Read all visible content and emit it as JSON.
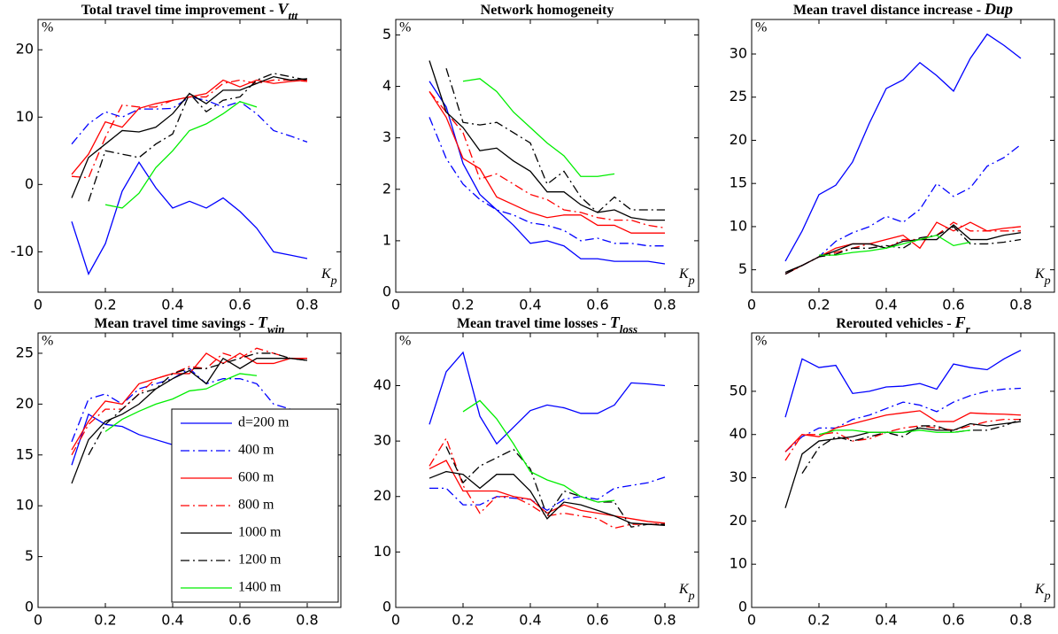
{
  "chart_data": [
    {
      "type": "line",
      "title": "Total travel time improvement -",
      "title_var": "V",
      "title_sub": "ttt",
      "y_label": "%",
      "x_label": "K",
      "x_label_sub": "p",
      "x": [
        0.1,
        0.15,
        0.2,
        0.25,
        0.3,
        0.35,
        0.4,
        0.45,
        0.5,
        0.55,
        0.6,
        0.65,
        0.7,
        0.75,
        0.8
      ],
      "xlim": [
        0,
        0.9
      ],
      "xticks": [
        0,
        0.2,
        0.4,
        0.6,
        0.8
      ],
      "ylim": [
        -16,
        24.5
      ],
      "yticks": [
        -10,
        0,
        10,
        20
      ],
      "series": [
        {
          "color": "#0000ff",
          "dash": "solid",
          "values": [
            -5.5,
            -13.3,
            -8.8,
            -1,
            3.3,
            -0.5,
            -3.5,
            -2.5,
            -3.5,
            -2,
            -4,
            -6.5,
            -10,
            -10.5,
            -11
          ]
        },
        {
          "color": "#0000ff",
          "dash": "dashdot",
          "values": [
            6,
            9,
            10.8,
            10,
            11.2,
            11.2,
            11.3,
            13,
            12.5,
            11.5,
            12.3,
            10.5,
            8,
            7.2,
            6.3
          ]
        },
        {
          "color": "#ff0000",
          "dash": "solid",
          "values": [
            1.5,
            4.5,
            9.3,
            8.5,
            11.3,
            12,
            12.5,
            13,
            13.5,
            15.5,
            14.5,
            15.5,
            15,
            15.3,
            15.5
          ]
        },
        {
          "color": "#ff0000",
          "dash": "dashdot",
          "values": [
            1.2,
            1,
            7,
            11.8,
            11.5,
            11.5,
            12.5,
            13,
            13,
            15,
            15.5,
            15,
            15.5,
            15.5,
            15.3
          ]
        },
        {
          "color": "#000000",
          "dash": "solid",
          "values": [
            -2,
            4,
            6,
            8,
            7.8,
            8.5,
            10.5,
            13.5,
            12,
            14,
            14,
            15,
            16,
            15.5,
            15.7
          ]
        },
        {
          "color": "#000000",
          "dash": "dashdot",
          "values": [
            null,
            -2.5,
            5,
            4.5,
            4,
            6,
            7.5,
            13.5,
            10.8,
            12.5,
            13,
            15.5,
            16.5,
            16,
            15.5
          ]
        },
        {
          "color": "#00ee00",
          "dash": "solid",
          "values": [
            null,
            null,
            -3,
            -3.5,
            -1.3,
            2.5,
            5,
            8,
            9,
            10.5,
            12.3,
            11.5,
            null,
            null,
            null
          ]
        }
      ]
    },
    {
      "type": "line",
      "title": "Network homogeneity",
      "y_label": "%",
      "x_label": "K",
      "x_label_sub": "p",
      "x": [
        0.1,
        0.15,
        0.2,
        0.25,
        0.3,
        0.35,
        0.4,
        0.45,
        0.5,
        0.55,
        0.6,
        0.65,
        0.7,
        0.75,
        0.8
      ],
      "xlim": [
        0,
        0.9
      ],
      "xticks": [
        0,
        0.2,
        0.4,
        0.6,
        0.8
      ],
      "ylim": [
        0,
        5.3
      ],
      "yticks": [
        0,
        1,
        2,
        3,
        4,
        5
      ],
      "series": [
        {
          "color": "#0000ff",
          "dash": "solid",
          "values": [
            4.1,
            3.6,
            2.5,
            1.9,
            1.6,
            1.3,
            0.95,
            1,
            0.9,
            0.65,
            0.65,
            0.6,
            0.6,
            0.6,
            0.55
          ]
        },
        {
          "color": "#0000ff",
          "dash": "dashdot",
          "values": [
            3.4,
            2.6,
            2.1,
            1.8,
            1.6,
            1.5,
            1.35,
            1.3,
            1.2,
            1,
            1.05,
            0.95,
            0.95,
            0.9,
            0.9
          ]
        },
        {
          "color": "#ff0000",
          "dash": "solid",
          "values": [
            3.9,
            3.4,
            2.6,
            2.4,
            1.85,
            1.7,
            1.55,
            1.45,
            1.5,
            1.5,
            1.3,
            1.3,
            1.15,
            1.15,
            1.15
          ]
        },
        {
          "color": "#ff0000",
          "dash": "dashdot",
          "values": [
            3.9,
            3.5,
            3.1,
            2.2,
            2.3,
            2.1,
            1.9,
            1.8,
            1.6,
            1.55,
            1.45,
            1.4,
            1.4,
            1.3,
            1.25
          ]
        },
        {
          "color": "#000000",
          "dash": "solid",
          "values": [
            4.5,
            3.5,
            3.2,
            2.75,
            2.8,
            2.55,
            2.35,
            1.95,
            1.95,
            1.7,
            1.55,
            1.6,
            1.45,
            1.4,
            1.4
          ]
        },
        {
          "color": "#000000",
          "dash": "dashdot",
          "values": [
            null,
            4.35,
            3.3,
            3.25,
            3.3,
            3.1,
            2.9,
            2.1,
            2.35,
            1.85,
            1.55,
            1.85,
            1.6,
            1.6,
            1.6
          ]
        },
        {
          "color": "#00ee00",
          "dash": "solid",
          "values": [
            null,
            null,
            4.1,
            4.15,
            3.9,
            3.5,
            3.2,
            2.9,
            2.65,
            2.25,
            2.25,
            2.3,
            null,
            null,
            null
          ]
        }
      ]
    },
    {
      "type": "line",
      "title": "Mean travel distance increase -",
      "title_var": "Dup",
      "y_label": "%",
      "x_label": "K",
      "x_label_sub": "p",
      "x": [
        0.1,
        0.15,
        0.2,
        0.25,
        0.3,
        0.35,
        0.4,
        0.45,
        0.5,
        0.55,
        0.6,
        0.65,
        0.7,
        0.75,
        0.8
      ],
      "xlim": [
        0,
        0.9
      ],
      "xticks": [
        0,
        0.2,
        0.4,
        0.6,
        0.8
      ],
      "ylim": [
        2.4,
        34
      ],
      "yticks": [
        5,
        10,
        15,
        20,
        25,
        30
      ],
      "series": [
        {
          "color": "#0000ff",
          "dash": "solid",
          "values": [
            6,
            9.5,
            13.7,
            14.8,
            17.5,
            22,
            26,
            27,
            29,
            27.5,
            25.7,
            29.5,
            32.3,
            31,
            29.5
          ]
        },
        {
          "color": "#0000ff",
          "dash": "dashdot",
          "values": [
            4.5,
            5.5,
            6.5,
            8.3,
            9.3,
            10,
            11.2,
            10.5,
            12,
            15,
            13.5,
            14.5,
            17,
            18,
            19.5
          ]
        },
        {
          "color": "#ff0000",
          "dash": "solid",
          "values": [
            4.5,
            5.5,
            6.5,
            7.5,
            8,
            8,
            8.5,
            9,
            7.5,
            10.5,
            9.5,
            10.5,
            9.5,
            9.8,
            10
          ]
        },
        {
          "color": "#ff0000",
          "dash": "dashdot",
          "values": [
            4.5,
            5.5,
            6.5,
            7,
            7.5,
            8,
            7.5,
            8.5,
            8.5,
            9,
            10.5,
            9.5,
            9.5,
            9.5,
            9.5
          ]
        },
        {
          "color": "#000000",
          "dash": "solid",
          "values": [
            4.7,
            5.5,
            6.5,
            7.2,
            8,
            8,
            7.5,
            8.3,
            8.5,
            8.5,
            10.2,
            8.5,
            8.5,
            9,
            9.3
          ]
        },
        {
          "color": "#000000",
          "dash": "dashdot",
          "values": [
            4.5,
            5.5,
            6.5,
            6.8,
            7.5,
            7.5,
            7.8,
            7.5,
            8.7,
            9,
            10,
            8,
            8,
            8.2,
            8.5
          ]
        },
        {
          "color": "#00ee00",
          "dash": "solid",
          "values": [
            null,
            null,
            6.7,
            6.7,
            7,
            7.2,
            7.5,
            8,
            8.5,
            9,
            7.8,
            8.2,
            null,
            null,
            null
          ]
        }
      ]
    },
    {
      "type": "line",
      "title": "Mean travel time savings -",
      "title_var": "T",
      "title_sub": "win",
      "y_label": "%",
      "x_label": "K",
      "x_label_sub": "p",
      "legend": "lower right",
      "x": [
        0.1,
        0.15,
        0.2,
        0.25,
        0.3,
        0.35,
        0.4,
        0.45,
        0.5,
        0.55,
        0.6,
        0.65,
        0.7,
        0.75,
        0.8
      ],
      "xlim": [
        0,
        0.9
      ],
      "xticks": [
        0,
        0.2,
        0.4,
        0.6,
        0.8
      ],
      "ylim": [
        0,
        27
      ],
      "yticks": [
        0,
        5,
        10,
        15,
        20,
        25
      ],
      "series": [
        {
          "name": "d=200 m",
          "color": "#0000ff",
          "dash": "solid",
          "values": [
            14,
            19,
            18,
            17.8,
            17,
            16.5,
            16,
            15.5,
            15,
            14.5,
            14.5,
            14,
            14,
            13.5,
            13.5
          ]
        },
        {
          "name": "400 m",
          "color": "#0000ff",
          "dash": "dashdot",
          "values": [
            16.3,
            20.5,
            21,
            20,
            21.5,
            22,
            22.5,
            23.5,
            22,
            22.5,
            22.5,
            22,
            20,
            19.5,
            19
          ]
        },
        {
          "name": "600 m",
          "color": "#ff0000",
          "dash": "solid",
          "values": [
            15.5,
            18.3,
            20.3,
            20,
            22,
            22.5,
            23,
            23,
            25,
            24,
            25,
            24,
            24,
            24.5,
            24.5
          ]
        },
        {
          "name": "800 m",
          "color": "#ff0000",
          "dash": "dashdot",
          "values": [
            15,
            18,
            19.5,
            19.5,
            21,
            22.5,
            23,
            23.7,
            23.5,
            25,
            24.5,
            25.5,
            25,
            24.5,
            24.5
          ]
        },
        {
          "name": "1000 m",
          "color": "#000000",
          "dash": "solid",
          "values": [
            12.2,
            16.5,
            18.3,
            19,
            20,
            21.5,
            22.5,
            23.3,
            22,
            24.5,
            23.5,
            24.5,
            24.5,
            24.5,
            24.3
          ]
        },
        {
          "name": "1200 m",
          "color": "#000000",
          "dash": "dashdot",
          "values": [
            null,
            15,
            18,
            19.5,
            21,
            21.5,
            23,
            23.5,
            23.5,
            24,
            24.5,
            25,
            25,
            24.5,
            24.3
          ]
        },
        {
          "name": "1400 m",
          "color": "#00ee00",
          "dash": "solid",
          "values": [
            null,
            null,
            17.3,
            18.5,
            19.3,
            20,
            20.5,
            21.3,
            21.5,
            22.3,
            23,
            22.8,
            null,
            null,
            null
          ]
        }
      ]
    },
    {
      "type": "line",
      "title": "Mean travel time losses -",
      "title_var": "T",
      "title_sub": "loss",
      "y_label": "%",
      "x_label": "K",
      "x_label_sub": "p",
      "x": [
        0.1,
        0.15,
        0.2,
        0.25,
        0.3,
        0.35,
        0.4,
        0.45,
        0.5,
        0.55,
        0.6,
        0.65,
        0.7,
        0.75,
        0.8
      ],
      "xlim": [
        0,
        0.9
      ],
      "xticks": [
        0,
        0.2,
        0.4,
        0.6,
        0.8
      ],
      "ylim": [
        0,
        49.5
      ],
      "yticks": [
        0,
        10,
        20,
        30,
        40
      ],
      "series": [
        {
          "color": "#0000ff",
          "dash": "solid",
          "values": [
            33,
            42.5,
            46,
            34.5,
            29.5,
            32.5,
            35.5,
            36.5,
            36,
            35,
            35,
            36.5,
            40.5,
            40.3,
            40
          ]
        },
        {
          "color": "#0000ff",
          "dash": "dashdot",
          "values": [
            21.5,
            21.5,
            18.5,
            18.5,
            20,
            19.7,
            19.5,
            17.5,
            19.5,
            20,
            19.5,
            21.5,
            22,
            22.5,
            23.5
          ]
        },
        {
          "color": "#ff0000",
          "dash": "solid",
          "values": [
            25,
            26.5,
            21,
            21,
            21,
            20,
            19.5,
            17,
            18.5,
            17.5,
            17,
            16.5,
            16,
            15.5,
            15.2
          ]
        },
        {
          "color": "#ff0000",
          "dash": "dashdot",
          "values": [
            25.5,
            30.5,
            22,
            17,
            20,
            20,
            18.5,
            16.5,
            17,
            16.5,
            16,
            14.3,
            15,
            15,
            15
          ]
        },
        {
          "color": "#000000",
          "dash": "solid",
          "values": [
            23.3,
            24.5,
            24,
            21.5,
            24,
            24,
            21,
            16,
            19,
            18.5,
            17.5,
            16.5,
            15.2,
            15,
            14.8
          ]
        },
        {
          "color": "#000000",
          "dash": "dashdot",
          "values": [
            null,
            29,
            22.5,
            25.5,
            27,
            28.5,
            25,
            16.5,
            21,
            20,
            19,
            19,
            14.5,
            15,
            15
          ]
        },
        {
          "color": "#00ee00",
          "dash": "solid",
          "values": [
            null,
            null,
            35.3,
            37.3,
            34,
            29.5,
            24.5,
            23,
            22,
            20,
            19,
            19.3,
            null,
            null,
            null
          ]
        }
      ]
    },
    {
      "type": "line",
      "title": "Rerouted vehicles -",
      "title_var": "F",
      "title_sub": "r",
      "y_label": "%",
      "x_label": "K",
      "x_label_sub": "p",
      "x": [
        0.1,
        0.15,
        0.2,
        0.25,
        0.3,
        0.35,
        0.4,
        0.45,
        0.5,
        0.55,
        0.6,
        0.65,
        0.7,
        0.75,
        0.8
      ],
      "xlim": [
        0,
        0.9
      ],
      "xticks": [
        0,
        0.2,
        0.4,
        0.6,
        0.8
      ],
      "ylim": [
        0,
        63.5
      ],
      "yticks": [
        0,
        10,
        20,
        30,
        40,
        50
      ],
      "series": [
        {
          "color": "#0000ff",
          "dash": "solid",
          "values": [
            44,
            57.5,
            55.5,
            56,
            49.5,
            50,
            51,
            51.2,
            51.8,
            50.5,
            56.3,
            55.5,
            55,
            57.5,
            59.5
          ]
        },
        {
          "color": "#0000ff",
          "dash": "dashdot",
          "values": [
            36,
            39.5,
            41.5,
            41.5,
            43.5,
            44.5,
            46,
            47.5,
            46.8,
            45.3,
            47.5,
            49,
            50,
            50.5,
            50.7
          ]
        },
        {
          "color": "#ff0000",
          "dash": "solid",
          "values": [
            36,
            40,
            39.5,
            41.5,
            42.5,
            43.5,
            44.5,
            45,
            45.5,
            43,
            43,
            45,
            44.8,
            44.7,
            44.5
          ]
        },
        {
          "color": "#ff0000",
          "dash": "dashdot",
          "values": [
            34,
            40,
            40,
            40.5,
            38.5,
            39,
            40.5,
            41.5,
            42,
            41.5,
            41,
            42,
            43,
            43.5,
            43.5
          ]
        },
        {
          "color": "#000000",
          "dash": "solid",
          "values": [
            23,
            35.5,
            38.5,
            39,
            39.5,
            40.5,
            40.5,
            40.5,
            41.5,
            41,
            41,
            42.5,
            42,
            42.5,
            43
          ]
        },
        {
          "color": "#000000",
          "dash": "dashdot",
          "values": [
            null,
            31,
            37,
            39.5,
            38.5,
            39.5,
            40.5,
            39.5,
            42,
            42,
            40.5,
            41,
            41,
            42,
            43.5
          ]
        },
        {
          "color": "#00ee00",
          "dash": "solid",
          "values": [
            null,
            null,
            40,
            41,
            41,
            40.5,
            40.5,
            40.5,
            41,
            40.5,
            40.5,
            41,
            null,
            null,
            null
          ]
        }
      ]
    }
  ]
}
